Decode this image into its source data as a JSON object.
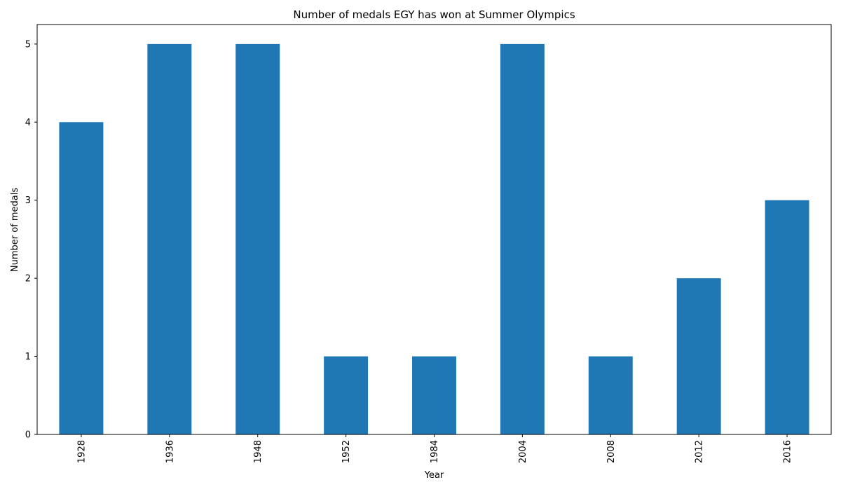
{
  "chart_data": {
    "type": "bar",
    "title": "Number of medals EGY has won at Summer Olympics",
    "xlabel": "Year",
    "ylabel": "Number of medals",
    "categories": [
      "1928",
      "1936",
      "1948",
      "1952",
      "1984",
      "2004",
      "2008",
      "2012",
      "2016"
    ],
    "values": [
      4,
      5,
      5,
      1,
      1,
      5,
      1,
      2,
      3
    ],
    "ylim": [
      0,
      5.25
    ],
    "yticks": [
      0,
      1,
      2,
      3,
      4,
      5
    ],
    "x_tick_rotation": "vertical",
    "grid": false,
    "legend": "none",
    "bar_color": "#1f77b4"
  }
}
